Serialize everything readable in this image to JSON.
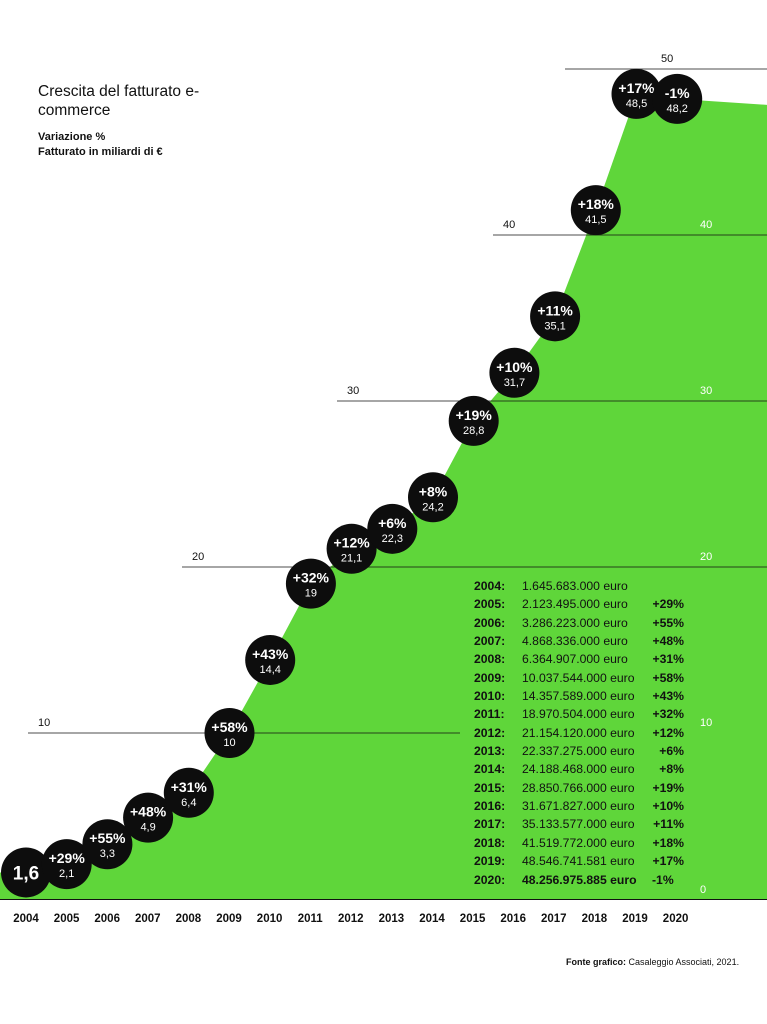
{
  "title": "Crescita del fatturato e-commerce",
  "subtitle_line1": "Variazione %",
  "subtitle_line2": "Fatturato in miliardi di €",
  "source_label": "Fonte grafico:",
  "source_text": " Casaleggio Associati, 2021.",
  "colors": {
    "area": "#5fd63a",
    "bubble": "#0d0d0d",
    "bubble_text": "#ffffff",
    "grid": "#111111"
  },
  "chart_data": {
    "type": "area",
    "title": "Crescita del fatturato e-commerce",
    "ylabel": "Fatturato in miliardi di €",
    "x": [
      "2004",
      "2005",
      "2006",
      "2007",
      "2008",
      "2009",
      "2010",
      "2011",
      "2012",
      "2013",
      "2014",
      "2015",
      "2016",
      "2017",
      "2018",
      "2019",
      "2020"
    ],
    "values": [
      1.6,
      2.1,
      3.3,
      4.9,
      6.4,
      10,
      14.4,
      19,
      21.1,
      22.3,
      24.2,
      28.8,
      31.7,
      35.1,
      41.5,
      48.5,
      48.2
    ],
    "value_labels": [
      "1,6",
      "2,1",
      "3,3",
      "4,9",
      "6,4",
      "10",
      "14,4",
      "19",
      "21,1",
      "22,3",
      "24,2",
      "28,8",
      "31,7",
      "35,1",
      "41,5",
      "48,5",
      "48,2"
    ],
    "change_labels": [
      "",
      "+29%",
      "+55%",
      "+48%",
      "+31%",
      "+58%",
      "+43%",
      "+32%",
      "+12%",
      "+6%",
      "+8%",
      "+19%",
      "+10%",
      "+11%",
      "+18%",
      "+17%",
      "-1%"
    ],
    "yticks": [
      "0",
      "10",
      "20",
      "30",
      "40",
      "50"
    ],
    "ylim": [
      0,
      50
    ],
    "grid": true
  },
  "table": [
    {
      "year": "2004:",
      "value": "1.645.683.000 euro",
      "pct": ""
    },
    {
      "year": "2005:",
      "value": "2.123.495.000 euro",
      "pct": "+29%"
    },
    {
      "year": "2006:",
      "value": "3.286.223.000 euro",
      "pct": "+55%"
    },
    {
      "year": "2007:",
      "value": "4.868.336.000 euro",
      "pct": "+48%"
    },
    {
      "year": "2008:",
      "value": "6.364.907.000 euro",
      "pct": "+31%"
    },
    {
      "year": "2009:",
      "value": "10.037.544.000 euro",
      "pct": "+58%"
    },
    {
      "year": "2010:",
      "value": "14.357.589.000 euro",
      "pct": "+43%"
    },
    {
      "year": "2011:",
      "value": "18.970.504.000 euro",
      "pct": "+32%"
    },
    {
      "year": "2012:",
      "value": "21.154.120.000 euro",
      "pct": "+12%"
    },
    {
      "year": "2013:",
      "value": "22.337.275.000 euro",
      "pct": "+6%"
    },
    {
      "year": "2014:",
      "value": "24.188.468.000 euro",
      "pct": "+8%"
    },
    {
      "year": "2015:",
      "value": "28.850.766.000 euro",
      "pct": "+19%"
    },
    {
      "year": "2016:",
      "value": "31.671.827.000 euro",
      "pct": "+10%"
    },
    {
      "year": "2017:",
      "value": "35.133.577.000 euro",
      "pct": "+11%"
    },
    {
      "year": "2018:",
      "value": "41.519.772.000 euro",
      "pct": "+18%"
    },
    {
      "year": "2019:",
      "value": "48.546.741.581 euro",
      "pct": "+17%"
    },
    {
      "year": "2020:",
      "value": "48.256.975.885 euro",
      "pct": "-1%"
    }
  ]
}
